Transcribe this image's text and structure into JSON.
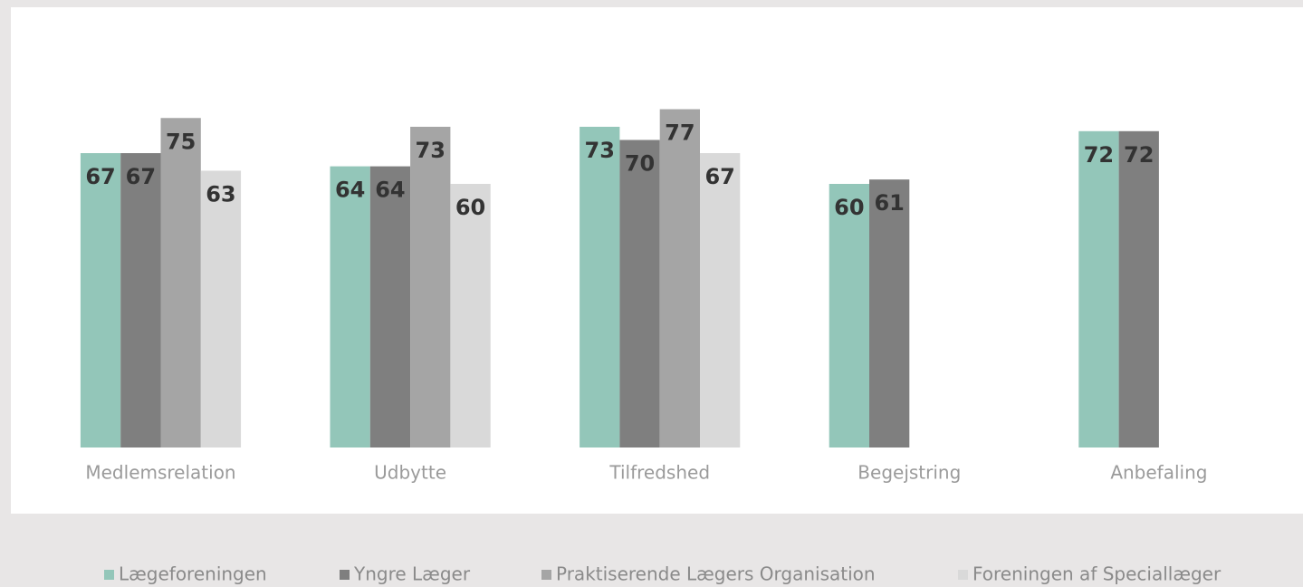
{
  "chart_data": {
    "type": "bar",
    "categories": [
      "Medlemsrelation",
      "Udbytte",
      "Tilfredshed",
      "Begejstring",
      "Anbefaling"
    ],
    "series": [
      {
        "name": "Lægeforeningen",
        "color": "#93c6b9",
        "values": [
          67,
          64,
          73,
          60,
          72
        ]
      },
      {
        "name": "Yngre Læger",
        "color": "#7f7f7f",
        "values": [
          67,
          64,
          70,
          61,
          72
        ]
      },
      {
        "name": "Praktiserende Lægers Organisation",
        "color": "#a5a5a5",
        "values": [
          75,
          73,
          77,
          null,
          null
        ]
      },
      {
        "name": "Foreningen af Speciallæger",
        "color": "#d9d9d9",
        "values": [
          63,
          60,
          67,
          null,
          null
        ]
      }
    ],
    "ylim": [
      0,
      100
    ]
  }
}
